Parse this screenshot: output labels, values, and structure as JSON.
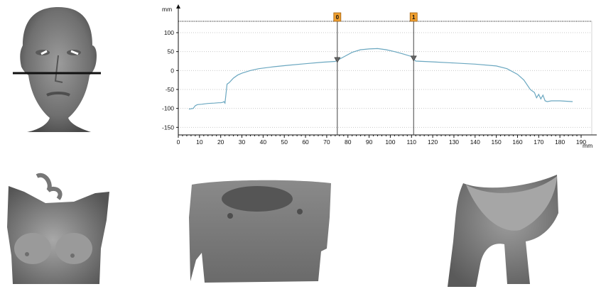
{
  "chart_data": {
    "type": "line",
    "x_unit": "mm",
    "y_unit": "mm",
    "xlim": [
      0,
      190
    ],
    "ylim": [
      -170,
      130
    ],
    "x_ticks": [
      0,
      10,
      20,
      30,
      40,
      50,
      60,
      70,
      80,
      90,
      100,
      110,
      120,
      130,
      140,
      150,
      160,
      170,
      180,
      190
    ],
    "y_ticks": [
      100,
      50,
      0,
      -50,
      -100,
      -150
    ],
    "series": [
      {
        "color": "#6aa7c0",
        "x": [
          5,
          7,
          8,
          9,
          11,
          14,
          17,
          19,
          20,
          21,
          21.5,
          22,
          22.5,
          23,
          24,
          26,
          28,
          30,
          34,
          38,
          45,
          52,
          60,
          68,
          74,
          78,
          82,
          86,
          90,
          94,
          98,
          102,
          106,
          110,
          112,
          120,
          130,
          140,
          150,
          155,
          160,
          163,
          166,
          168,
          169,
          170,
          171,
          172,
          173,
          174,
          176,
          180,
          186
        ],
        "y": [
          -102,
          -100,
          -93,
          -90,
          -89,
          -87,
          -86,
          -85,
          -85,
          -84,
          -82,
          -86,
          -62,
          -36,
          -32,
          -20,
          -12,
          -7,
          0,
          5,
          10,
          14,
          18,
          22,
          24,
          36,
          48,
          55,
          57,
          58,
          55,
          50,
          44,
          37,
          25,
          23,
          20,
          17,
          12,
          5,
          -10,
          -25,
          -50,
          -58,
          -72,
          -63,
          -75,
          -65,
          -80,
          -82,
          -80,
          -80,
          -82
        ]
      }
    ],
    "markers": [
      {
        "label": "0",
        "x": 75
      },
      {
        "label": "1",
        "x": 111
      }
    ]
  }
}
